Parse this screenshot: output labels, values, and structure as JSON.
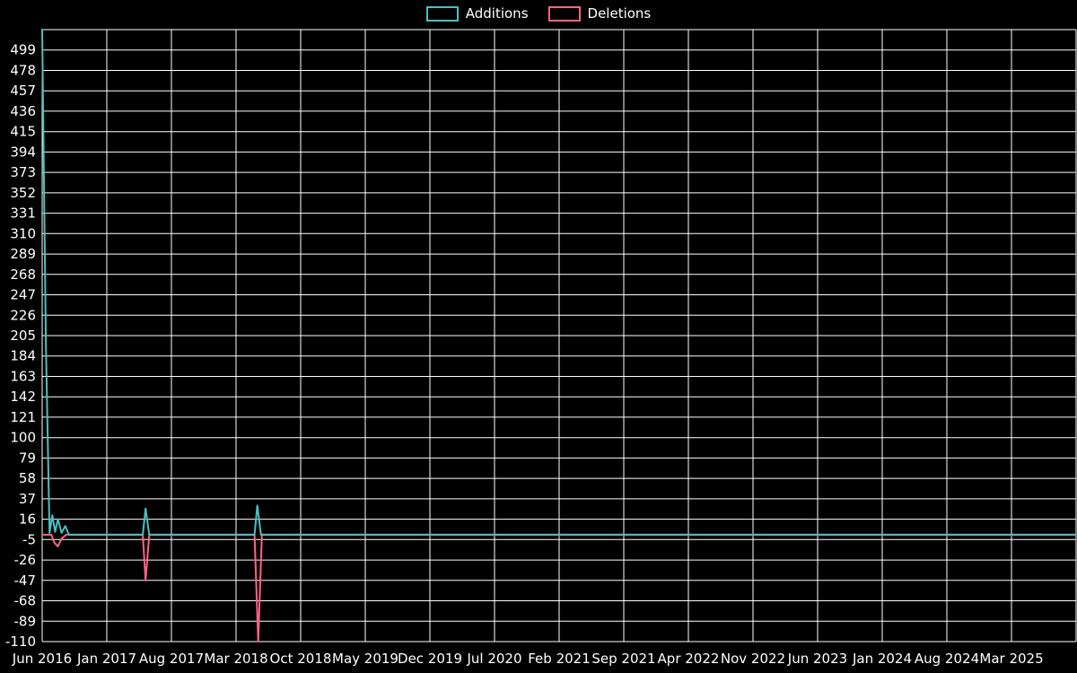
{
  "legend": {
    "items": [
      {
        "label": "Additions",
        "color": "#4bc0c0"
      },
      {
        "label": "Deletions",
        "color": "#ff6384"
      }
    ]
  },
  "chart_data": {
    "type": "line",
    "title": "",
    "legend_position": "top",
    "grid": true,
    "background": "#000000",
    "text_color": "#ffffff",
    "grid_color": "#ffffff",
    "x_tick_labels": [
      "Jun 2016",
      "Jan 2017",
      "Aug 2017",
      "Mar 2018",
      "Oct 2018",
      "May 2019",
      "Dec 2019",
      "Jul 2020",
      "Feb 2021",
      "Sep 2021",
      "Apr 2022",
      "Nov 2022",
      "Jun 2023",
      "Jan 2024",
      "Aug 2024",
      "Mar 2025"
    ],
    "months_per_tick": 7,
    "x_total_months": 112,
    "y_ticks": [
      499,
      478,
      457,
      436,
      415,
      394,
      373,
      352,
      331,
      310,
      289,
      268,
      247,
      226,
      205,
      184,
      163,
      142,
      121,
      100,
      79,
      58,
      37,
      16,
      -5,
      -26,
      -47,
      -68,
      -89,
      -110
    ],
    "ylim": [
      -110,
      499
    ],
    "series": [
      {
        "name": "Additions",
        "color": "#4bc0c0",
        "points": [
          [
            0,
            520
          ],
          [
            0.4,
            199
          ],
          [
            0.8,
            2
          ],
          [
            1.1,
            20
          ],
          [
            1.4,
            3
          ],
          [
            1.7,
            16
          ],
          [
            2.1,
            2
          ],
          [
            2.5,
            9
          ],
          [
            2.9,
            0
          ],
          [
            10.9,
            0
          ],
          [
            11.2,
            27
          ],
          [
            11.6,
            0
          ],
          [
            23.0,
            0
          ],
          [
            23.3,
            30
          ],
          [
            23.7,
            0
          ],
          [
            112,
            0
          ]
        ]
      },
      {
        "name": "Deletions",
        "color": "#ff6384",
        "points": [
          [
            0,
            0
          ],
          [
            1.0,
            0
          ],
          [
            1.3,
            -8
          ],
          [
            1.7,
            -12
          ],
          [
            2.1,
            -4
          ],
          [
            2.6,
            0
          ],
          [
            10.9,
            0
          ],
          [
            11.2,
            -47
          ],
          [
            11.6,
            0
          ],
          [
            23.0,
            0
          ],
          [
            23.4,
            -110
          ],
          [
            23.8,
            0
          ],
          [
            112,
            0
          ]
        ]
      }
    ]
  }
}
